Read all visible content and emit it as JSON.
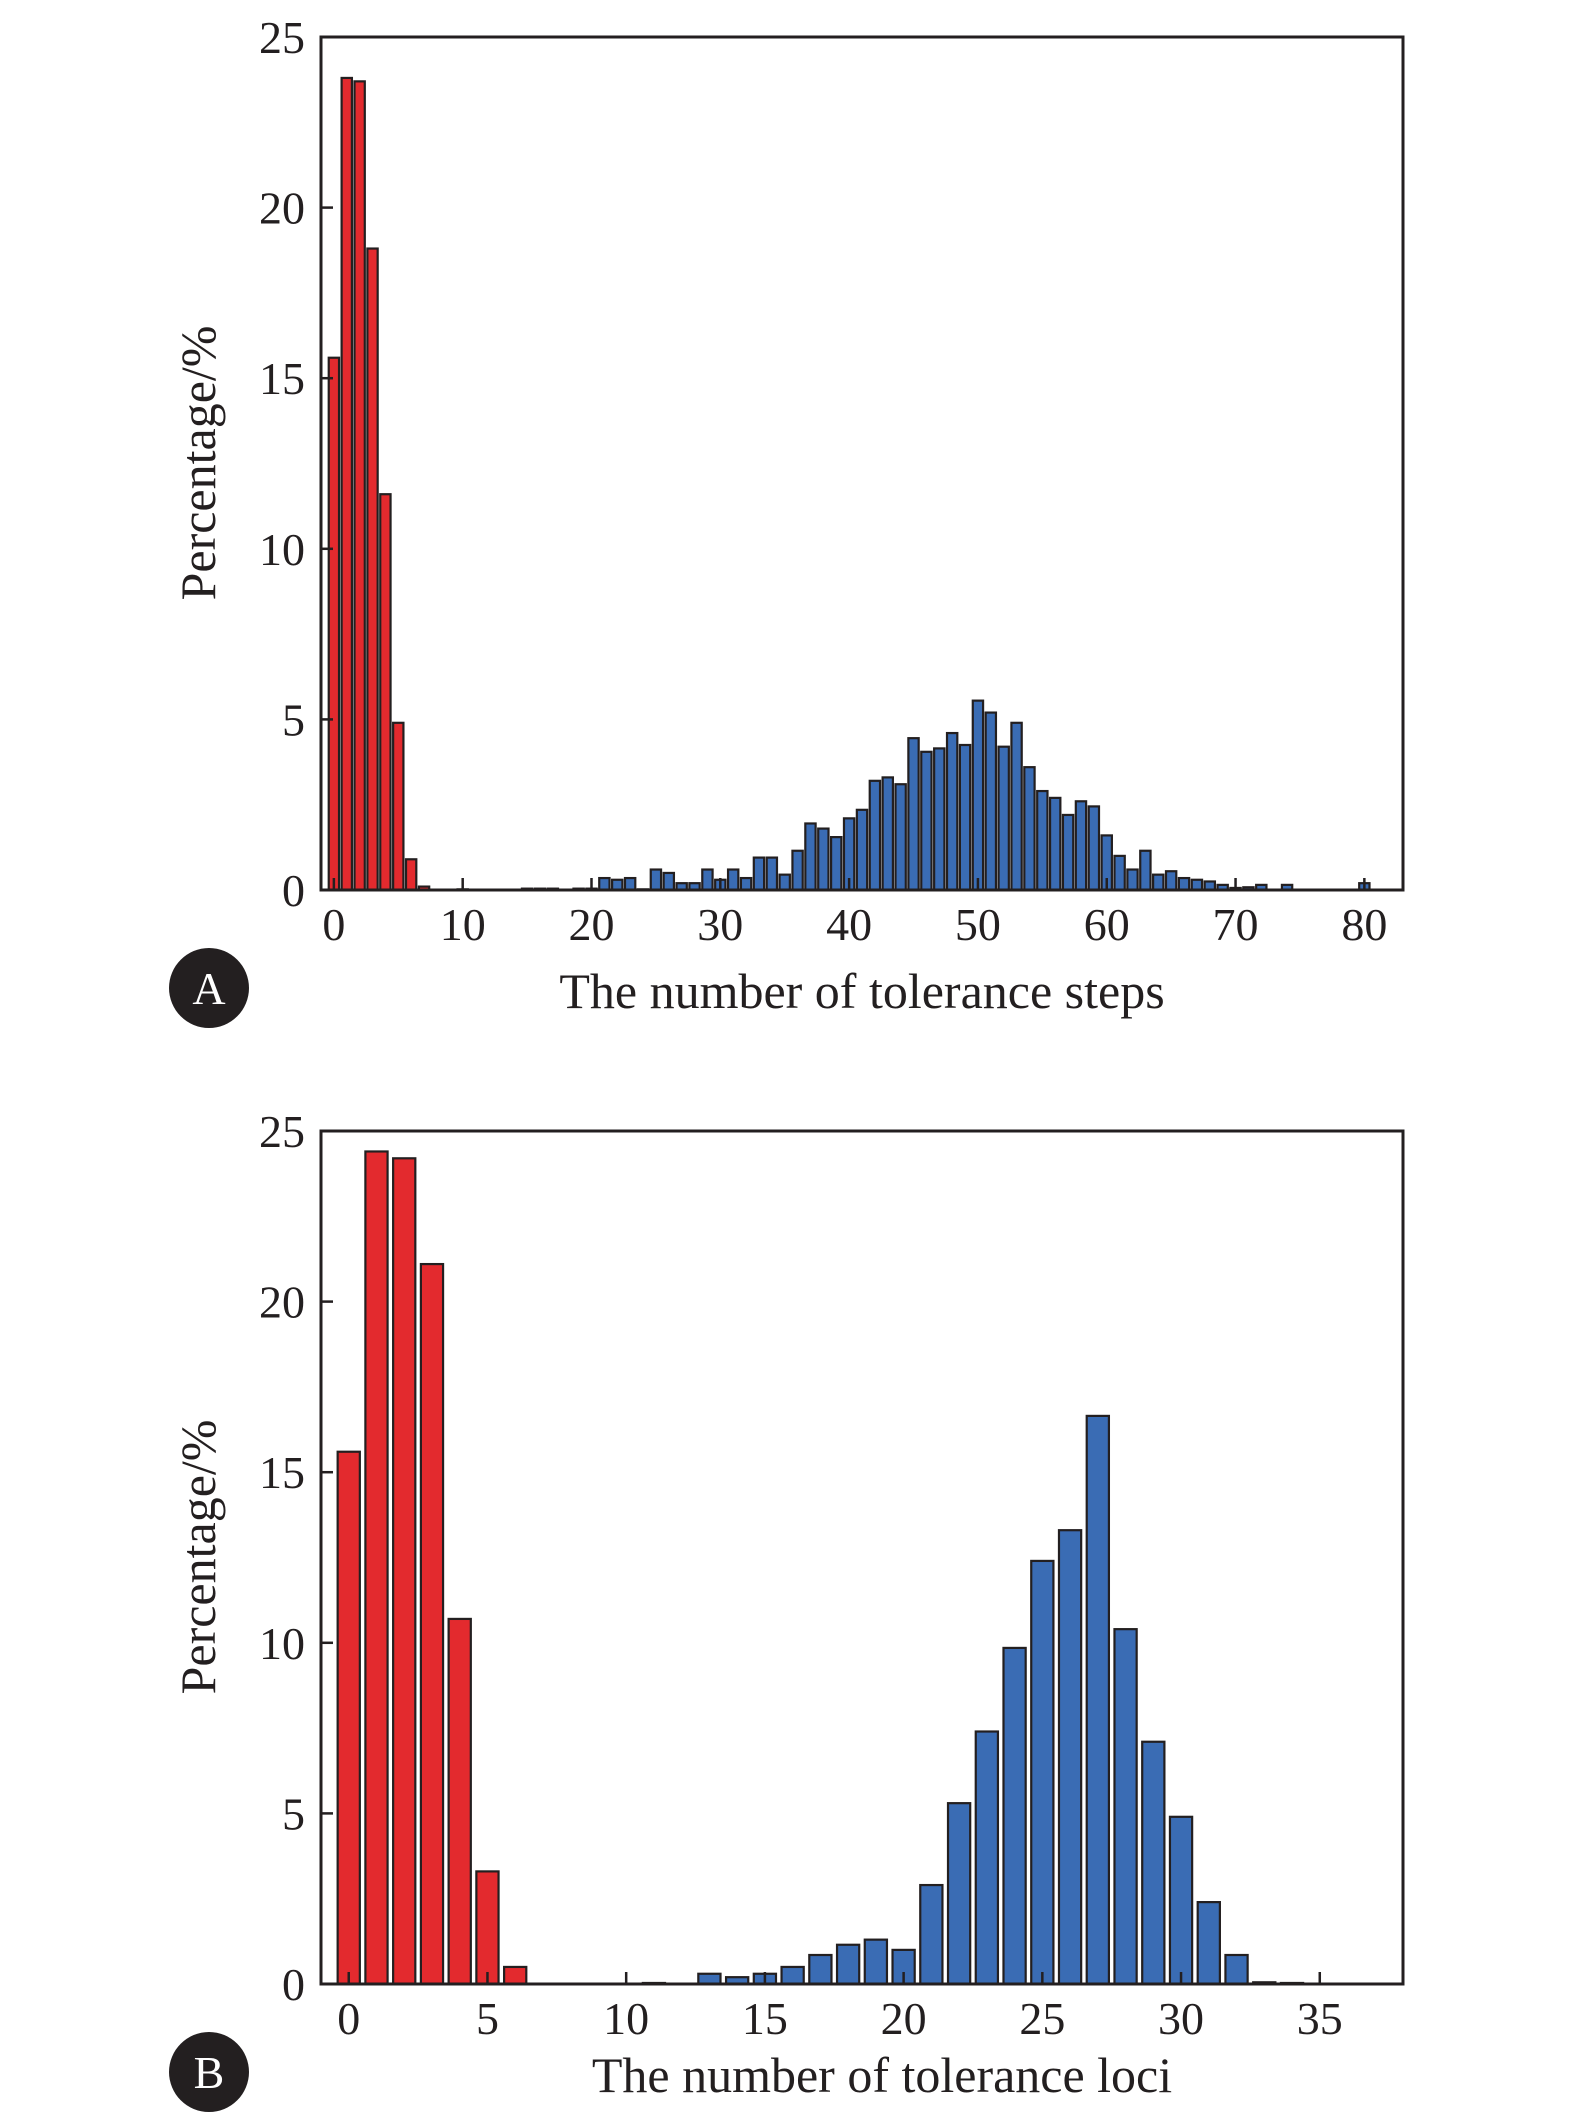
{
  "colors": {
    "red": "#e32a2e",
    "blue": "#3a6cb4",
    "ink": "#231f20"
  },
  "chart_data": [
    {
      "type": "bar",
      "panel_label": "A",
      "xlabel": "The number of tolerance steps",
      "ylabel": "Percentage/%",
      "xlim": [
        -1,
        83
      ],
      "ylim": [
        0,
        25
      ],
      "xticks": [
        "0",
        "10",
        "20",
        "30",
        "40",
        "50",
        "60",
        "70",
        "80"
      ],
      "yticks": [
        "0",
        "5",
        "10",
        "15",
        "20",
        "25"
      ],
      "grid": false,
      "series": [
        {
          "color": "red",
          "bar_width": 0.8,
          "x": [
            0,
            1,
            2,
            3,
            4,
            5,
            6,
            7
          ],
          "values": [
            15.6,
            23.8,
            23.7,
            18.8,
            11.6,
            4.9,
            0.9,
            0.1
          ]
        },
        {
          "color": "blue",
          "bar_width": 0.8,
          "x": [
            10,
            15,
            16,
            17,
            19,
            20,
            21,
            22,
            23,
            24,
            25,
            26,
            27,
            28,
            29,
            30,
            31,
            32,
            33,
            34,
            35,
            36,
            37,
            38,
            39,
            40,
            41,
            42,
            43,
            44,
            45,
            46,
            47,
            48,
            49,
            50,
            51,
            52,
            53,
            54,
            55,
            56,
            57,
            58,
            59,
            60,
            61,
            62,
            63,
            64,
            65,
            66,
            67,
            68,
            69,
            70,
            71,
            72,
            74,
            80
          ],
          "values": [
            0.02,
            0.04,
            0.04,
            0.04,
            0.04,
            0.04,
            0.35,
            0.3,
            0.35,
            0.02,
            0.6,
            0.5,
            0.2,
            0.2,
            0.6,
            0.3,
            0.6,
            0.35,
            0.95,
            0.95,
            0.45,
            1.15,
            1.95,
            1.8,
            1.55,
            2.1,
            2.35,
            3.2,
            3.3,
            3.1,
            4.45,
            4.05,
            4.15,
            4.6,
            4.25,
            5.55,
            5.2,
            4.2,
            4.9,
            3.6,
            2.9,
            2.7,
            2.2,
            2.6,
            2.45,
            1.6,
            1.0,
            0.6,
            1.15,
            0.45,
            0.55,
            0.35,
            0.3,
            0.25,
            0.15,
            0.06,
            0.08,
            0.15,
            0.15,
            0.2
          ]
        }
      ]
    },
    {
      "type": "bar",
      "panel_label": "B",
      "xlabel": "The number of tolerance loci",
      "ylabel": "Percentage/%",
      "xlim": [
        -1,
        38
      ],
      "ylim": [
        0,
        25
      ],
      "xticks": [
        "0",
        "5",
        "10",
        "15",
        "20",
        "25",
        "30",
        "35"
      ],
      "yticks": [
        "0",
        "5",
        "10",
        "15",
        "20",
        "25"
      ],
      "grid": false,
      "series": [
        {
          "color": "red",
          "bar_width": 0.8,
          "x": [
            0,
            1,
            2,
            3,
            4,
            5,
            6
          ],
          "values": [
            15.6,
            24.4,
            24.2,
            21.1,
            10.7,
            3.3,
            0.5
          ]
        },
        {
          "color": "blue",
          "bar_width": 0.8,
          "x": [
            11,
            13,
            14,
            15,
            16,
            17,
            18,
            19,
            20,
            21,
            22,
            23,
            24,
            25,
            26,
            27,
            28,
            29,
            30,
            31,
            32,
            33,
            34
          ],
          "values": [
            0.03,
            0.3,
            0.2,
            0.3,
            0.5,
            0.85,
            1.15,
            1.3,
            1.0,
            2.9,
            5.3,
            7.4,
            9.85,
            12.4,
            13.3,
            16.65,
            10.4,
            7.1,
            4.9,
            2.4,
            0.85,
            0.05,
            0.03
          ]
        }
      ]
    }
  ]
}
